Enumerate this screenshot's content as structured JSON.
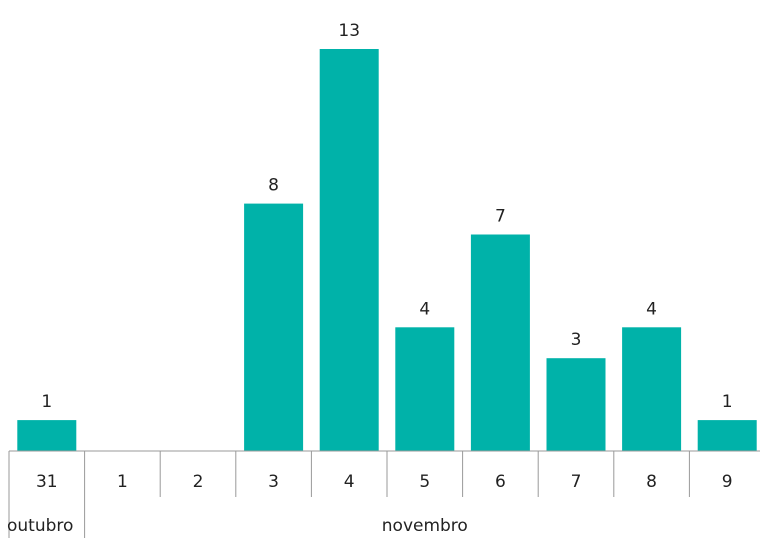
{
  "chart_data": {
    "type": "bar",
    "categories": [
      "31",
      "1",
      "2",
      "3",
      "4",
      "5",
      "6",
      "7",
      "8",
      "9"
    ],
    "values": [
      1,
      0,
      0,
      8,
      13,
      4,
      7,
      3,
      4,
      1
    ],
    "data_labels": [
      "1",
      "",
      "",
      "8",
      "13",
      "4",
      "7",
      "3",
      "4",
      "1"
    ],
    "group_labels": [
      {
        "label": "outubro",
        "start_index": 0,
        "end_index": 0
      },
      {
        "label": "novembro",
        "start_index": 1,
        "end_index": 9
      }
    ],
    "title": "",
    "xlabel": "",
    "ylabel": "",
    "ylim": [
      0,
      13
    ],
    "grid": false,
    "legend": "none",
    "bar_color": "#00b2a9",
    "axis_color": "#999999",
    "text_color": "#222222"
  }
}
